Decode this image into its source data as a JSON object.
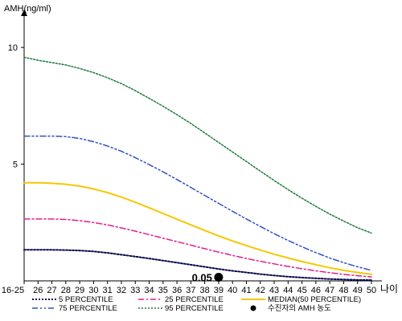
{
  "chart_data": {
    "type": "line",
    "ylabel": "AMH(ng/ml)",
    "xlabel": "나이",
    "ylim": [
      0,
      11
    ],
    "yticks": [
      5,
      10
    ],
    "categories": [
      "16-25",
      "26",
      "27",
      "28",
      "29",
      "30",
      "31",
      "32",
      "33",
      "34",
      "35",
      "36",
      "37",
      "38",
      "39",
      "40",
      "41",
      "42",
      "43",
      "44",
      "45",
      "46",
      "47",
      "48",
      "49",
      "50"
    ],
    "series": [
      {
        "name": "5 PERCENTILE",
        "color": "#0a0a50",
        "dash": "2,2",
        "width": 2,
        "values": [
          1.33,
          1.33,
          1.33,
          1.32,
          1.3,
          1.26,
          1.2,
          1.12,
          1.04,
          0.96,
          0.87,
          0.78,
          0.69,
          0.6,
          0.51,
          0.43,
          0.36,
          0.29,
          0.23,
          0.18,
          0.14,
          0.11,
          0.08,
          0.06,
          0.04,
          0.03
        ]
      },
      {
        "name": "25 PERCENTILE",
        "color": "#e0208a",
        "dash": "7,3,2,3",
        "width": 1.5,
        "values": [
          2.65,
          2.65,
          2.65,
          2.63,
          2.58,
          2.5,
          2.4,
          2.27,
          2.13,
          1.98,
          1.83,
          1.68,
          1.53,
          1.38,
          1.23,
          1.09,
          0.96,
          0.84,
          0.73,
          0.62,
          0.52,
          0.43,
          0.35,
          0.28,
          0.22,
          0.17
        ]
      },
      {
        "name": "MEDIAN(50 PERCENTILE)",
        "color": "#f5c800",
        "dash": "",
        "width": 2,
        "values": [
          4.2,
          4.2,
          4.18,
          4.14,
          4.06,
          3.94,
          3.78,
          3.59,
          3.37,
          3.13,
          2.89,
          2.64,
          2.4,
          2.16,
          1.93,
          1.71,
          1.51,
          1.32,
          1.14,
          0.98,
          0.83,
          0.69,
          0.56,
          0.45,
          0.36,
          0.28
        ]
      },
      {
        "name": "75 PERCENTILE",
        "color": "#3050c0",
        "dash": "7,3,2,3,2,3",
        "width": 1.5,
        "values": [
          6.2,
          6.2,
          6.2,
          6.18,
          6.1,
          5.96,
          5.78,
          5.55,
          5.28,
          4.98,
          4.67,
          4.34,
          4.0,
          3.66,
          3.32,
          2.98,
          2.65,
          2.33,
          2.02,
          1.73,
          1.46,
          1.21,
          0.98,
          0.78,
          0.6,
          0.45
        ]
      },
      {
        "name": "95 PERCENTILE",
        "color": "#1e7a3c",
        "dash": "2,2",
        "width": 1.5,
        "values": [
          9.58,
          9.45,
          9.35,
          9.25,
          9.1,
          8.92,
          8.7,
          8.45,
          8.15,
          7.82,
          7.48,
          7.12,
          6.74,
          6.34,
          5.93,
          5.52,
          5.11,
          4.7,
          4.3,
          3.91,
          3.54,
          3.19,
          2.86,
          2.56,
          2.28,
          2.05
        ]
      }
    ],
    "marker": {
      "name": "수진자의 AMH 농도",
      "x": "39",
      "y": 0.05,
      "label": "0.05",
      "color": "#000000"
    },
    "legend": {
      "placement": "bottom"
    }
  }
}
